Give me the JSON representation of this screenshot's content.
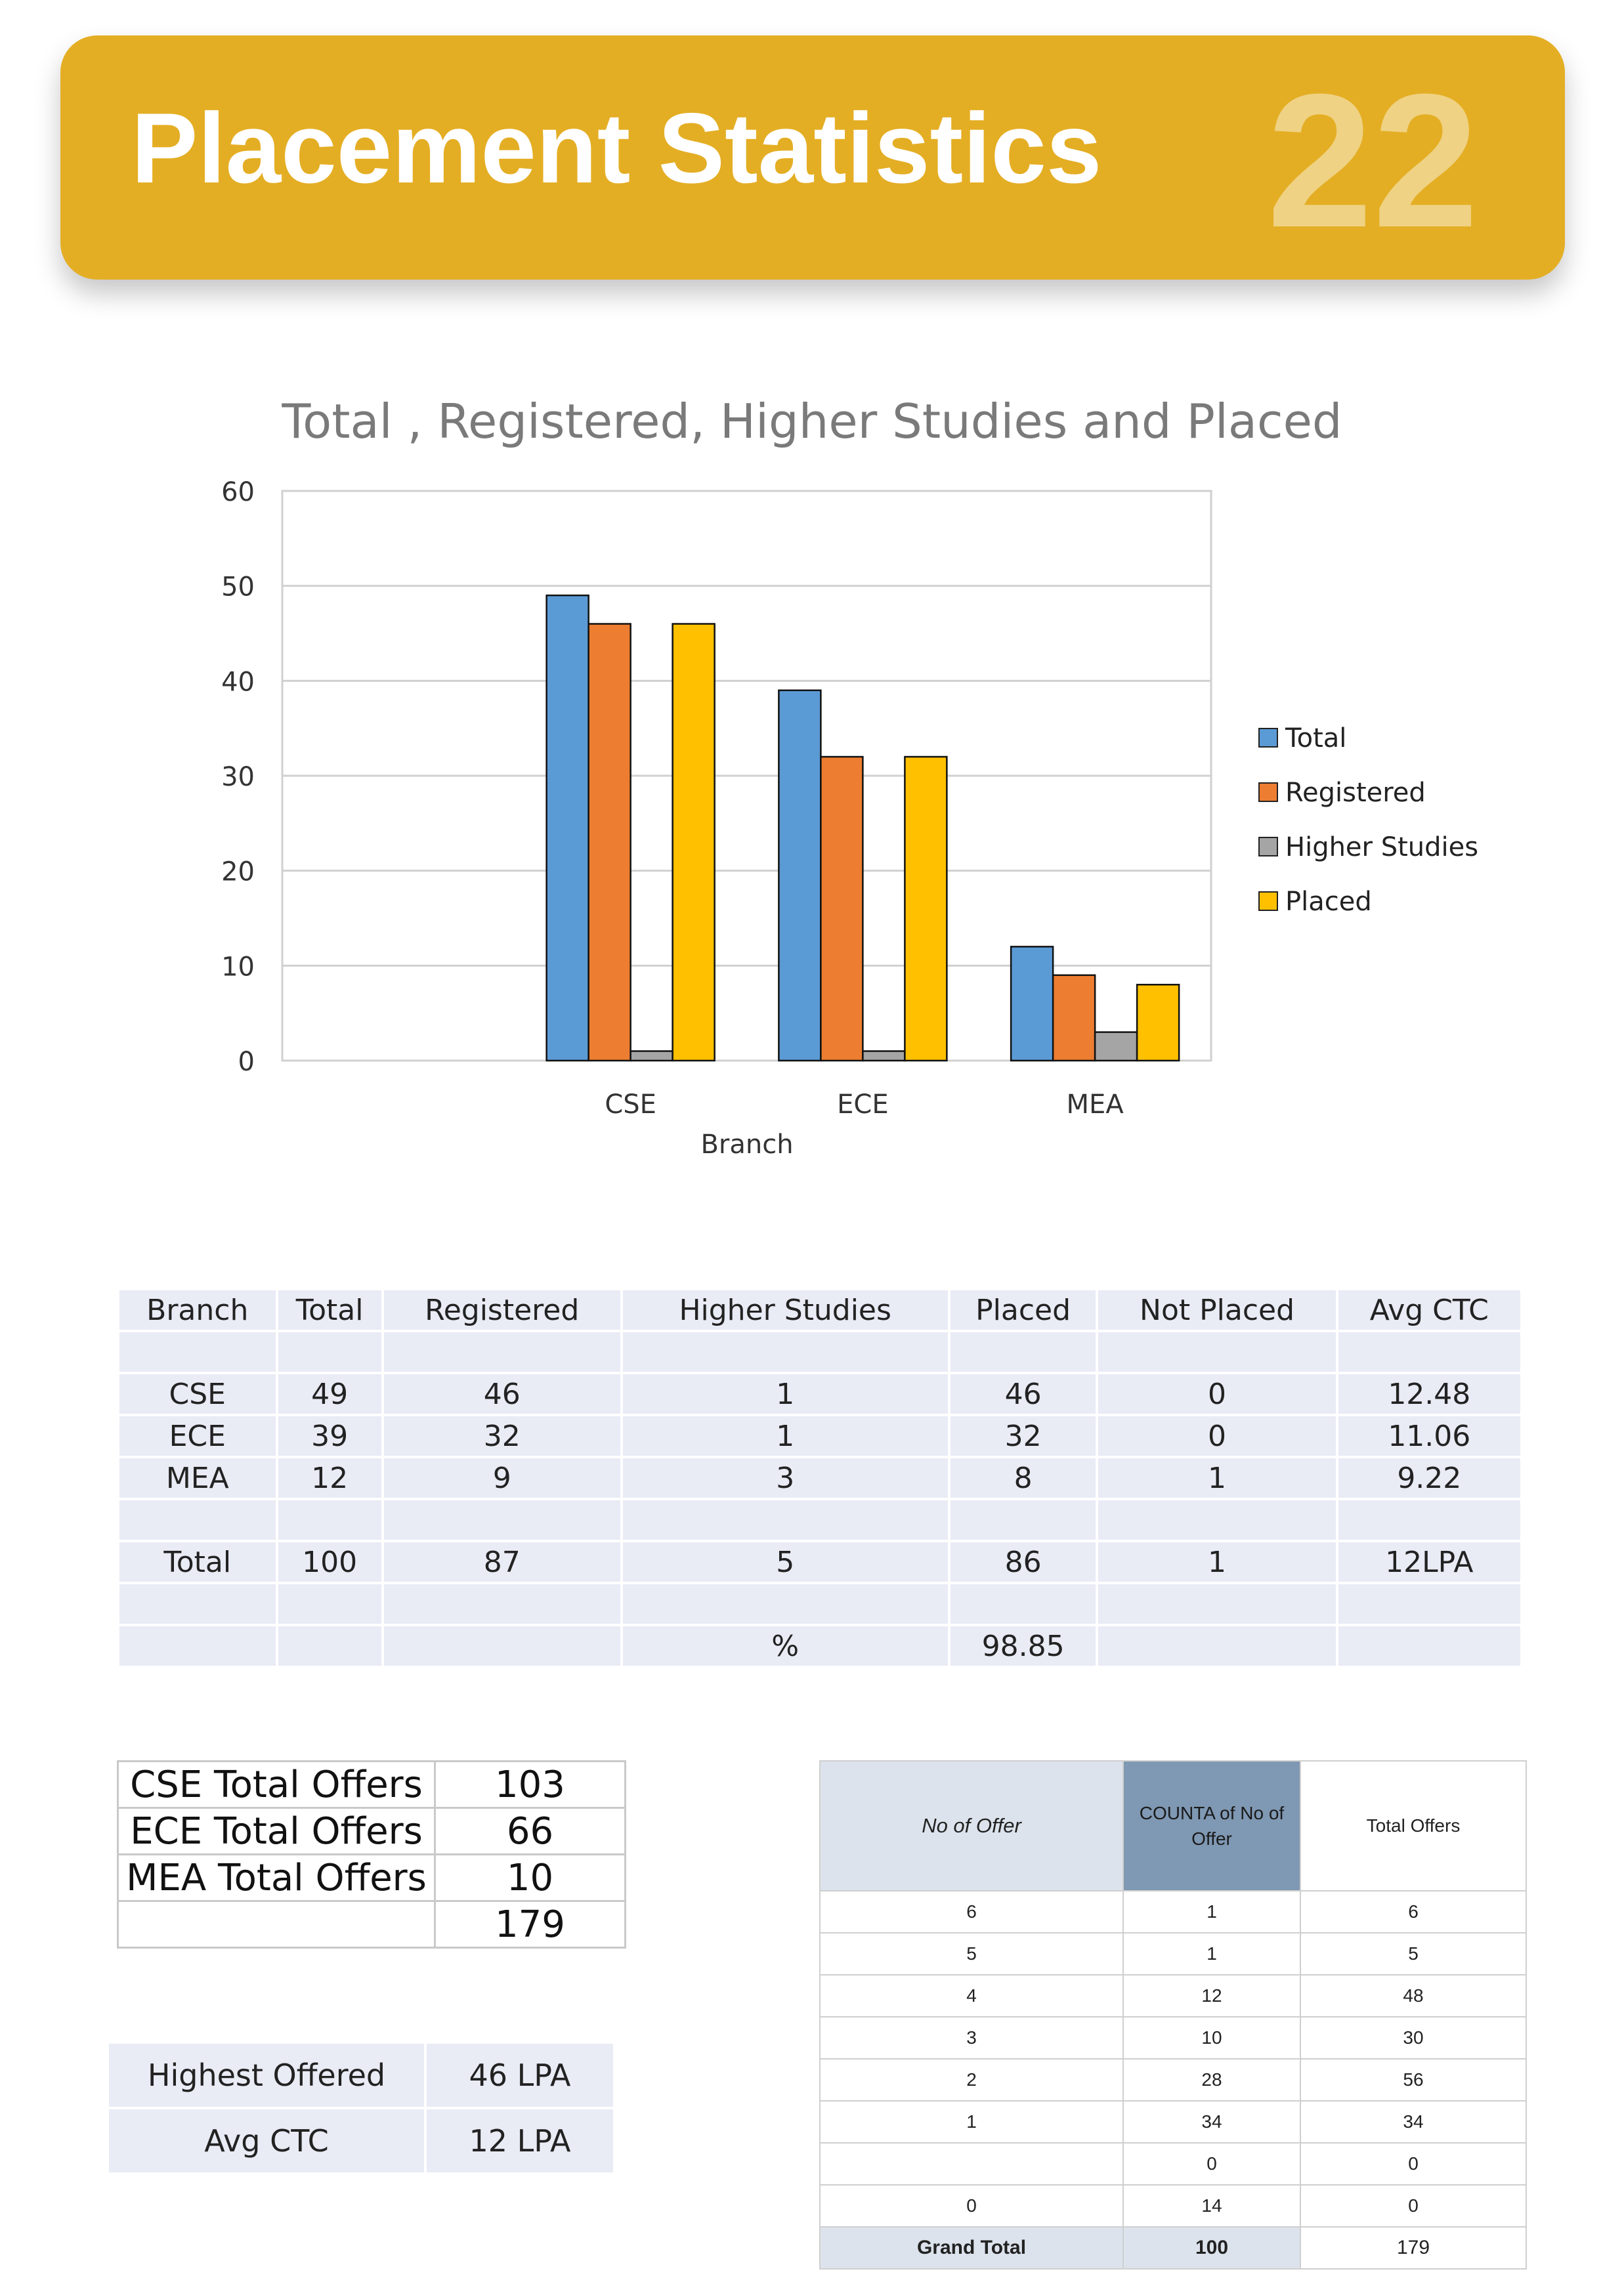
{
  "header": {
    "title": "Placement Statistics",
    "page_number": "22"
  },
  "colors": {
    "banner": "#e4ae24",
    "total": "#5b9bd5",
    "registered": "#ed7d31",
    "higher_studies": "#a5a5a5",
    "placed": "#ffc000"
  },
  "chart_data": {
    "type": "bar",
    "title": "Total , Registered, Higher Studies and Placed",
    "xlabel": "Branch",
    "ylabel": "",
    "ylim": [
      0,
      60
    ],
    "yticks": [
      0,
      10,
      20,
      30,
      40,
      50,
      60
    ],
    "categories": [
      "CSE",
      "ECE",
      "MEA"
    ],
    "category_slots": [
      "",
      "CSE",
      "ECE",
      "MEA"
    ],
    "grid": true,
    "legend": "right",
    "series": [
      {
        "name": "Total",
        "color": "#5b9bd5",
        "values": [
          49,
          39,
          12
        ]
      },
      {
        "name": "Registered",
        "color": "#ed7d31",
        "values": [
          46,
          32,
          9
        ]
      },
      {
        "name": "Higher Studies",
        "color": "#a5a5a5",
        "values": [
          1,
          1,
          3
        ]
      },
      {
        "name": "Placed",
        "color": "#ffc000",
        "values": [
          46,
          32,
          8
        ]
      }
    ]
  },
  "main_table": {
    "headers": [
      "Branch",
      "Total",
      "Registered",
      "Higher Studies",
      "Placed",
      "Not Placed",
      "Avg CTC"
    ],
    "rows": [
      [
        "",
        "",
        "",
        "",
        "",
        "",
        ""
      ],
      [
        "CSE",
        "49",
        "46",
        "1",
        "46",
        "0",
        "12.48"
      ],
      [
        "ECE",
        "39",
        "32",
        "1",
        "32",
        "0",
        "11.06"
      ],
      [
        "MEA",
        "12",
        "9",
        "3",
        "8",
        "1",
        "9.22"
      ],
      [
        "",
        "",
        "",
        "",
        "",
        "",
        ""
      ],
      [
        "Total",
        "100",
        "87",
        "5",
        "86",
        "1",
        "12LPA"
      ],
      [
        "",
        "",
        "",
        "",
        "",
        "",
        ""
      ],
      [
        "",
        "",
        "",
        "%",
        "98.85",
        "",
        ""
      ]
    ]
  },
  "offers_table": {
    "rows": [
      [
        "CSE Total Offers",
        "103"
      ],
      [
        "ECE Total Offers",
        "66"
      ],
      [
        "MEA Total Offers",
        "10"
      ],
      [
        "",
        "179"
      ]
    ]
  },
  "summary_table": {
    "rows": [
      [
        "Highest Offered",
        "46 LPA"
      ],
      [
        "Avg CTC",
        "12 LPA"
      ]
    ]
  },
  "pivot_table": {
    "headers": [
      "No of Offer",
      "COUNTA of No of Offer",
      "Total Offers"
    ],
    "rows": [
      [
        "6",
        "1",
        "6"
      ],
      [
        "5",
        "1",
        "5"
      ],
      [
        "4",
        "12",
        "48"
      ],
      [
        "3",
        "10",
        "30"
      ],
      [
        "2",
        "28",
        "56"
      ],
      [
        "1",
        "34",
        "34"
      ],
      [
        "",
        "0",
        "0"
      ],
      [
        "0",
        "14",
        "0"
      ]
    ],
    "grand_total": [
      "Grand Total",
      "100",
      "179"
    ]
  }
}
